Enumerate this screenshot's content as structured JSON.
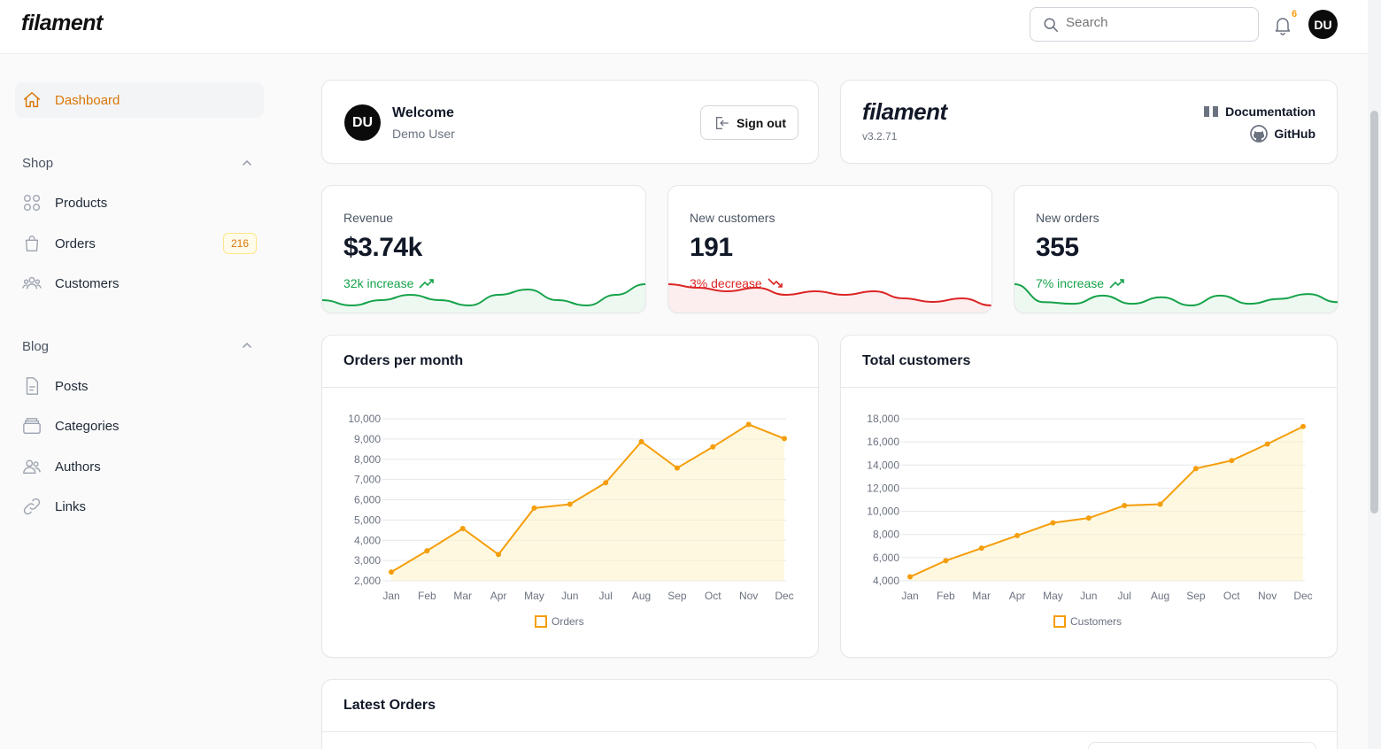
{
  "app": {
    "brand": "filament"
  },
  "topbar": {
    "search_placeholder": "Search",
    "notifications_count": "6",
    "user_initials": "DU"
  },
  "sidebar": {
    "dashboard": "Dashboard",
    "groups": [
      {
        "label": "Shop",
        "items": [
          {
            "label": "Products",
            "icon": "products-icon"
          },
          {
            "label": "Orders",
            "icon": "shopping-bag-icon",
            "badge": "216"
          },
          {
            "label": "Customers",
            "icon": "users-icon"
          }
        ]
      },
      {
        "label": "Blog",
        "items": [
          {
            "label": "Posts",
            "icon": "document-icon"
          },
          {
            "label": "Categories",
            "icon": "folder-icon"
          },
          {
            "label": "Authors",
            "icon": "user-group-icon"
          },
          {
            "label": "Links",
            "icon": "link-icon"
          }
        ]
      }
    ]
  },
  "welcome": {
    "initials": "DU",
    "title": "Welcome",
    "subtitle": "Demo User",
    "signout": "Sign out"
  },
  "info": {
    "brand": "filament",
    "version": "v3.2.71",
    "documentation": "Documentation",
    "github": "GitHub"
  },
  "stats": [
    {
      "label": "Revenue",
      "value": "$3.74k",
      "desc": "32k increase",
      "trend": "up",
      "color": "#16a34a",
      "spark": [
        4,
        3,
        4,
        5,
        4,
        3,
        5,
        6,
        4,
        3,
        5,
        7
      ]
    },
    {
      "label": "New customers",
      "value": "191",
      "desc": "3% decrease",
      "trend": "down",
      "color": "#dc2626",
      "spark": [
        17,
        16,
        15,
        16,
        14,
        15,
        14,
        15,
        13,
        12,
        13,
        11
      ]
    },
    {
      "label": "New orders",
      "value": "355",
      "desc": "7% increase",
      "trend": "up",
      "color": "#16a34a",
      "spark": [
        15,
        4,
        3,
        8,
        3,
        7,
        2,
        8,
        3,
        6,
        9,
        4
      ]
    }
  ],
  "charts": {
    "orders_title": "Orders per month",
    "customers_title": "Total customers",
    "accent": "#f59e0b"
  },
  "latest": {
    "title": "Latest Orders"
  },
  "chart_data": [
    {
      "type": "line",
      "title": "Orders per month",
      "categories": [
        "Jan",
        "Feb",
        "Mar",
        "Apr",
        "May",
        "Jun",
        "Jul",
        "Aug",
        "Sep",
        "Oct",
        "Nov",
        "Dec"
      ],
      "series": [
        {
          "name": "Orders",
          "values": [
            2430,
            3480,
            4580,
            3300,
            5590,
            5780,
            6840,
            8870,
            7570,
            8610,
            9720,
            9020
          ]
        }
      ],
      "ylim": [
        2000,
        10000
      ],
      "yticks": [
        "2,000",
        "3,000",
        "4,000",
        "5,000",
        "6,000",
        "7,000",
        "8,000",
        "9,000",
        "10,000"
      ],
      "grid": true,
      "legend": "bottom"
    },
    {
      "type": "line",
      "title": "Total customers",
      "categories": [
        "Jan",
        "Feb",
        "Mar",
        "Apr",
        "May",
        "Jun",
        "Jul",
        "Aug",
        "Sep",
        "Oct",
        "Nov",
        "Dec"
      ],
      "series": [
        {
          "name": "Customers",
          "values": [
            4340,
            5740,
            6820,
            7910,
            9010,
            9420,
            10500,
            10620,
            13700,
            14390,
            15820,
            17330
          ]
        }
      ],
      "ylim": [
        4000,
        18000
      ],
      "yticks": [
        "4,000",
        "6,000",
        "8,000",
        "10,000",
        "12,000",
        "14,000",
        "16,000",
        "18,000"
      ],
      "grid": true,
      "legend": "bottom"
    }
  ]
}
